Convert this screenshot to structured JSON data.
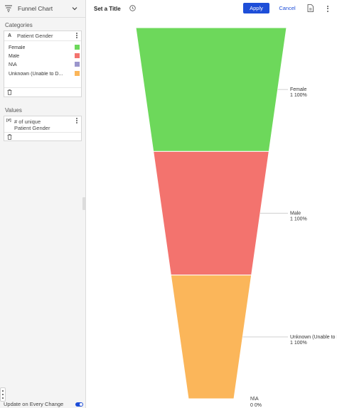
{
  "sidebar": {
    "chart_type": {
      "label": "Funnel Chart",
      "icon": "funnel-icon"
    },
    "categories": {
      "label": "Categories",
      "field_type": "A",
      "field_name": "Patient Gender",
      "items": [
        {
          "label": "Female",
          "color": "#6dd85b"
        },
        {
          "label": "Male",
          "color": "#f3736e"
        },
        {
          "label": "N\\A",
          "color": "#9b96cc"
        },
        {
          "label": "Unknown (Unable to D...",
          "color": "#fbb65a"
        }
      ]
    },
    "values": {
      "label": "Values",
      "field_type": "[#]",
      "field_name_line1": "# of unique",
      "field_name_line2": "Patient Gender"
    },
    "update_on_change": {
      "label": "Update on Every Change",
      "enabled": true
    }
  },
  "topbar": {
    "title": "Set a Title",
    "apply_label": "Apply",
    "cancel_label": "Cancel",
    "accent": "#1e4ed8"
  },
  "chart_data": {
    "type": "funnel",
    "stages": [
      {
        "label": "Female",
        "value": 1,
        "percent": "100%",
        "color": "#6dd85b"
      },
      {
        "label": "Male",
        "value": 1,
        "percent": "100%",
        "color": "#f3736e"
      },
      {
        "label": "Unknown (Unable to Determi...",
        "value": 1,
        "percent": "100%",
        "color": "#fbb65a"
      },
      {
        "label": "N\\A",
        "value": 0,
        "percent": "0%",
        "color": "#9b96cc"
      }
    ]
  }
}
